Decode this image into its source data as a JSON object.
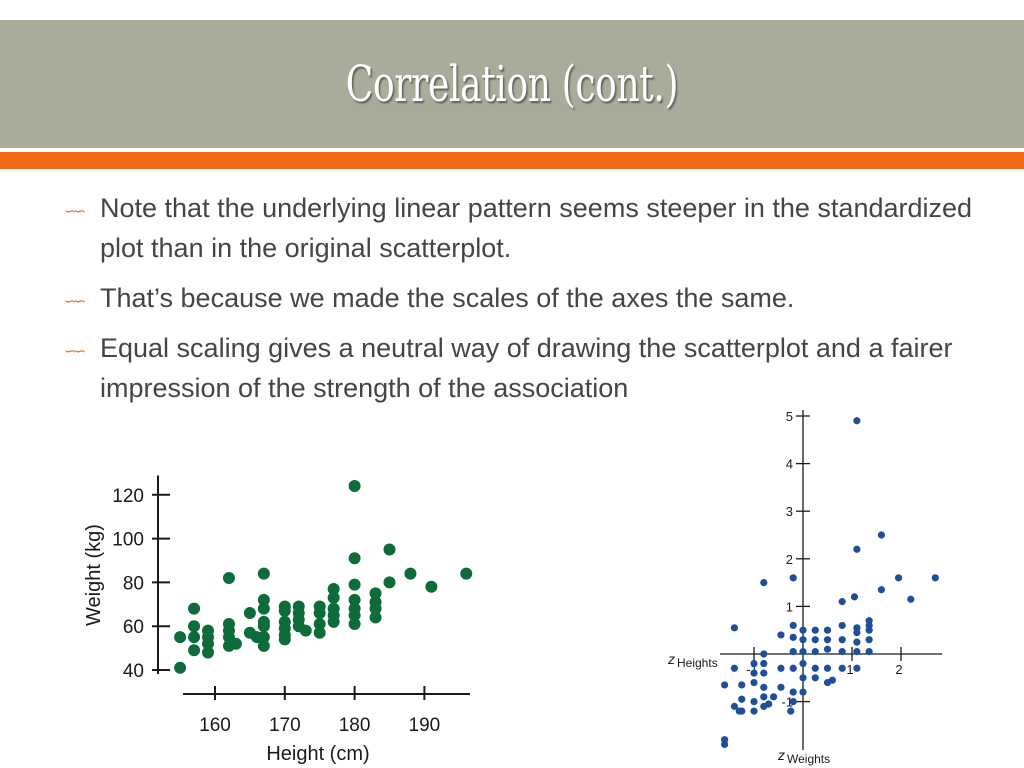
{
  "slide": {
    "title": "Correlation (cont.)",
    "bullet_icon": "infinity-swirl-icon",
    "bullets": [
      "Note that the underlying linear pattern seems steeper in the standardized plot than in the original scatterplot.",
      "That’s because we made the scales of the axes the same.",
      "Equal scaling gives a neutral way of drawing the scatterplot and a fairer impression of the strength of the association"
    ],
    "colors": {
      "title_bar": "#a8ad9b",
      "accent": "#f36a18",
      "text": "#454545"
    }
  },
  "chart_data": [
    {
      "type": "scatter",
      "xlabel": "Height (cm)",
      "ylabel": "Weight (kg)",
      "xlim": [
        153,
        197
      ],
      "ylim": [
        38,
        127
      ],
      "x_ticks": [
        160,
        170,
        180,
        190
      ],
      "y_ticks": [
        40,
        60,
        80,
        100,
        120
      ],
      "marker_color": "#0e6b3a",
      "points": [
        [
          155,
          41
        ],
        [
          155,
          55
        ],
        [
          157,
          68
        ],
        [
          157,
          60
        ],
        [
          157,
          55
        ],
        [
          157,
          49
        ],
        [
          159,
          58
        ],
        [
          159,
          55
        ],
        [
          159,
          52
        ],
        [
          159,
          48
        ],
        [
          162,
          82
        ],
        [
          162,
          61
        ],
        [
          162,
          58
        ],
        [
          162,
          55
        ],
        [
          162,
          51
        ],
        [
          163,
          52
        ],
        [
          165,
          66
        ],
        [
          165,
          57
        ],
        [
          166,
          55
        ],
        [
          167,
          84
        ],
        [
          167,
          72
        ],
        [
          167,
          68
        ],
        [
          167,
          62
        ],
        [
          167,
          60
        ],
        [
          167,
          55
        ],
        [
          167,
          51
        ],
        [
          170,
          69
        ],
        [
          170,
          67
        ],
        [
          170,
          62
        ],
        [
          170,
          59
        ],
        [
          170,
          56
        ],
        [
          170,
          54
        ],
        [
          172,
          69
        ],
        [
          172,
          66
        ],
        [
          172,
          63
        ],
        [
          172,
          60
        ],
        [
          173,
          58
        ],
        [
          175,
          69
        ],
        [
          175,
          66
        ],
        [
          175,
          61
        ],
        [
          175,
          57
        ],
        [
          177,
          77
        ],
        [
          177,
          73
        ],
        [
          177,
          68
        ],
        [
          177,
          65
        ],
        [
          177,
          62
        ],
        [
          180,
          124
        ],
        [
          180,
          91
        ],
        [
          180,
          79
        ],
        [
          180,
          72
        ],
        [
          180,
          68
        ],
        [
          180,
          65
        ],
        [
          180,
          61
        ],
        [
          183,
          75
        ],
        [
          183,
          71
        ],
        [
          183,
          68
        ],
        [
          183,
          64
        ],
        [
          185,
          95
        ],
        [
          185,
          80
        ],
        [
          188,
          84
        ],
        [
          191,
          78
        ],
        [
          196,
          84
        ]
      ]
    },
    {
      "type": "scatter",
      "xlabel": "z Heights",
      "ylabel": "z Weights",
      "xlim": [
        -1.7,
        2.8
      ],
      "ylim": [
        -2.0,
        5.0
      ],
      "x_ticks": [
        -1,
        1,
        2
      ],
      "y_ticks": [
        -1,
        1,
        2,
        3,
        4,
        5
      ],
      "marker_color": "#1f4f9a",
      "points": [
        [
          1.1,
          4.9
        ],
        [
          1.6,
          2.5
        ],
        [
          1.1,
          2.2
        ],
        [
          2.7,
          1.6
        ],
        [
          1.95,
          1.6
        ],
        [
          -0.2,
          1.6
        ],
        [
          -0.8,
          1.5
        ],
        [
          1.6,
          1.35
        ],
        [
          2.2,
          1.15
        ],
        [
          1.05,
          1.2
        ],
        [
          0.8,
          1.1
        ],
        [
          1.35,
          0.7
        ],
        [
          1.35,
          0.6
        ],
        [
          0.8,
          0.6
        ],
        [
          1.1,
          0.55
        ],
        [
          -0.2,
          0.6
        ],
        [
          -1.4,
          0.55
        ],
        [
          -0.45,
          0.4
        ],
        [
          0.0,
          0.5
        ],
        [
          0.25,
          0.5
        ],
        [
          0.5,
          0.5
        ],
        [
          1.1,
          0.45
        ],
        [
          1.35,
          0.5
        ],
        [
          0.0,
          0.3
        ],
        [
          0.25,
          0.3
        ],
        [
          0.5,
          0.3
        ],
        [
          0.8,
          0.3
        ],
        [
          1.1,
          0.25
        ],
        [
          1.35,
          0.3
        ],
        [
          -0.2,
          0.35
        ],
        [
          0.0,
          0.05
        ],
        [
          0.25,
          0.05
        ],
        [
          0.5,
          0.1
        ],
        [
          0.8,
          0.05
        ],
        [
          1.1,
          0.05
        ],
        [
          1.35,
          0.05
        ],
        [
          -0.2,
          0.05
        ],
        [
          -0.8,
          0.0
        ],
        [
          -1.0,
          -0.2
        ],
        [
          -0.8,
          -0.2
        ],
        [
          -1.4,
          -0.3
        ],
        [
          -1.0,
          -0.4
        ],
        [
          -0.8,
          -0.4
        ],
        [
          -0.45,
          -0.3
        ],
        [
          -0.2,
          -0.3
        ],
        [
          0.0,
          -0.2
        ],
        [
          0.25,
          -0.3
        ],
        [
          0.5,
          -0.3
        ],
        [
          0.8,
          -0.3
        ],
        [
          1.1,
          -0.3
        ],
        [
          0.0,
          -0.5
        ],
        [
          0.25,
          -0.5
        ],
        [
          0.5,
          -0.6
        ],
        [
          -1.6,
          -0.65
        ],
        [
          -1.25,
          -0.65
        ],
        [
          -1.0,
          -0.6
        ],
        [
          -0.8,
          -0.7
        ],
        [
          -0.45,
          -0.7
        ],
        [
          -0.2,
          -0.8
        ],
        [
          0.0,
          -0.8
        ],
        [
          -1.25,
          -0.95
        ],
        [
          -1.0,
          -1.0
        ],
        [
          -0.8,
          -0.9
        ],
        [
          -0.6,
          -0.9
        ],
        [
          -0.2,
          -1.0
        ],
        [
          -1.0,
          -1.2
        ],
        [
          -0.8,
          -1.1
        ],
        [
          -1.25,
          -1.2
        ],
        [
          -1.4,
          -1.1
        ],
        [
          -0.25,
          -1.2
        ],
        [
          -0.7,
          -1.05
        ],
        [
          -1.6,
          -1.8
        ],
        [
          -1.6,
          -1.9
        ],
        [
          -1.3,
          -1.2
        ],
        [
          0.6,
          -0.55
        ]
      ]
    }
  ]
}
